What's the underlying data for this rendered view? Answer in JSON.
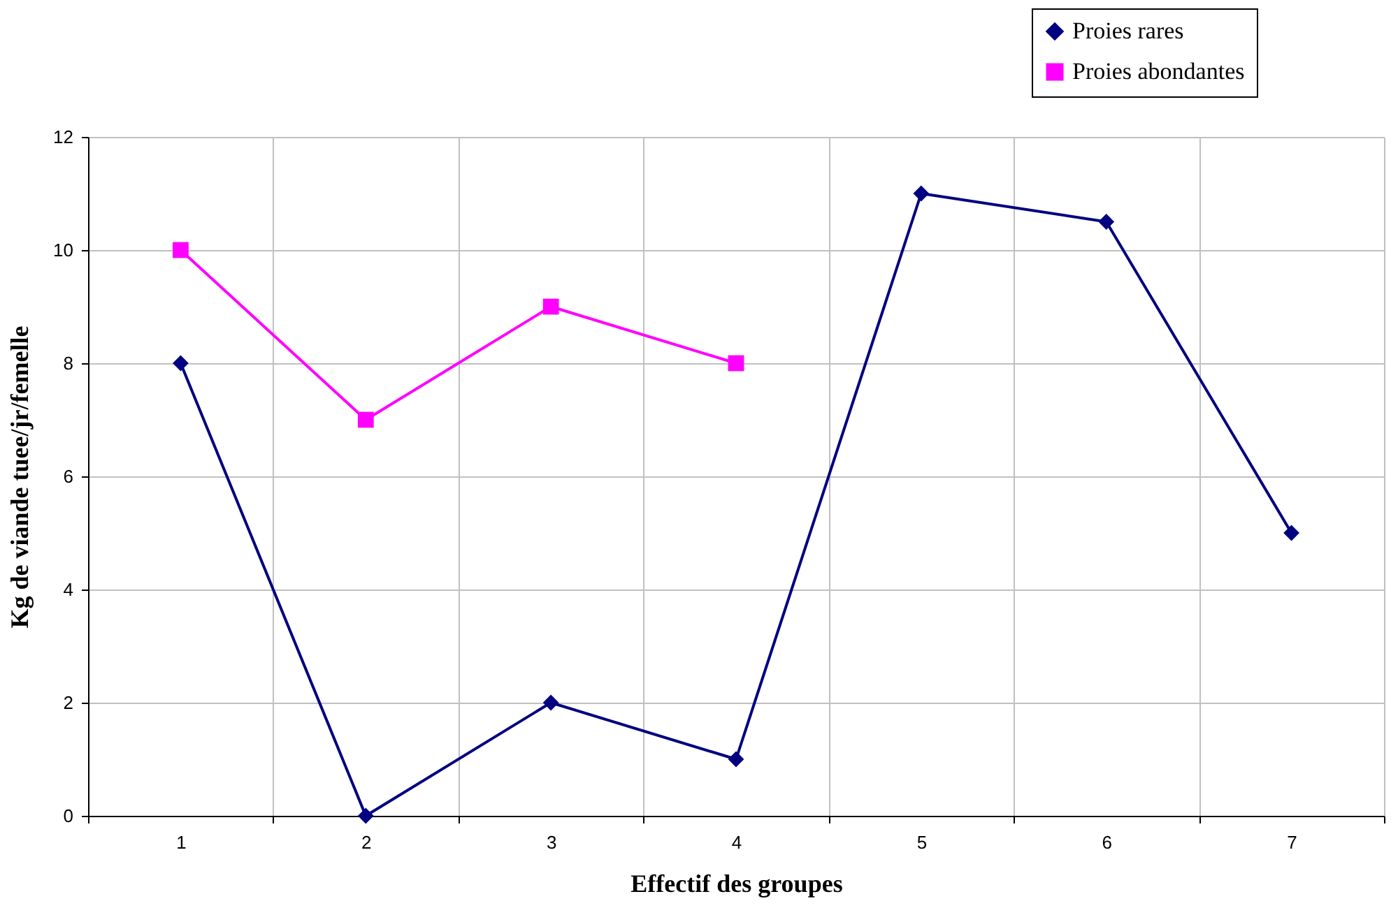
{
  "chart_data": {
    "type": "line",
    "xlabel": "Effectif des groupes",
    "ylabel": "Kg de viande tuee/jr/femelle",
    "categories": [
      "1",
      "2",
      "3",
      "4",
      "5",
      "6",
      "7"
    ],
    "series": [
      {
        "name": "Proies rares",
        "color": "#000080",
        "marker": "diamond",
        "values": [
          8,
          0,
          2,
          1,
          11,
          10.5,
          5
        ]
      },
      {
        "name": "Proies abondantes",
        "color": "#ff00ff",
        "marker": "square",
        "values": [
          10,
          7,
          9,
          8,
          null,
          null,
          null
        ]
      }
    ],
    "ylim": [
      0,
      12
    ],
    "yticks": [
      0,
      2,
      4,
      6,
      8,
      10,
      12
    ],
    "grid": true,
    "legend": "top right",
    "line_style": "solid"
  }
}
